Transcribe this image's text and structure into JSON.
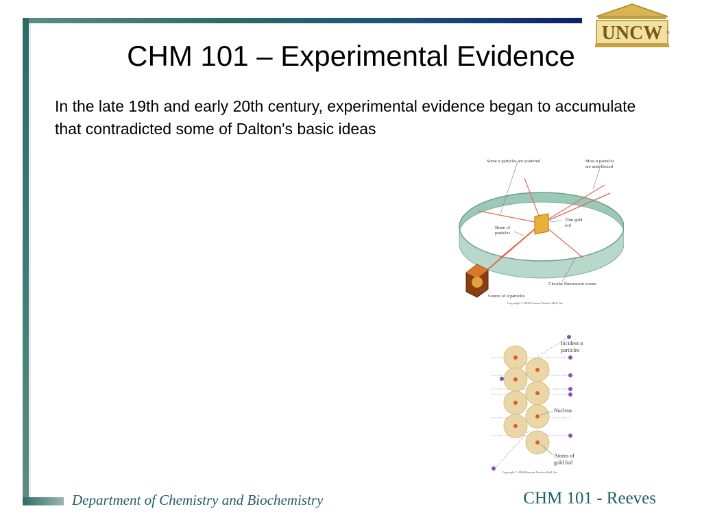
{
  "slide": {
    "title": "CHM 101 – Experimental Evidence",
    "body": "In the late 19th and early 20th century, experimental evidence began to accumulate that contradicted some of Dalton's basic ideas"
  },
  "logo": {
    "text": "UNCW",
    "mark": "®"
  },
  "figure_gold_foil_apparatus": {
    "label_scattered": "Some α particles are scattered",
    "label_undeflected_1": "Most α particles",
    "label_undeflected_2": "are undeflected",
    "label_foil_1": "Thin gold",
    "label_foil_2": "foil",
    "label_beam_1": "Beam of",
    "label_beam_2": "particles",
    "label_screen": "Circular fluorescent screen",
    "label_source": "Source of α particles",
    "copyright": "Copyright © 2006 Pearson Prentice Hall, Inc."
  },
  "figure_atoms": {
    "label_incident_1": "Incident α",
    "label_incident_2": "particles",
    "label_nucleus": "Nucleus",
    "label_atoms_1": "Atoms of",
    "label_atoms_2": "gold foil",
    "copyright": "Copyright © 2006 Pearson Prentice Hall, Inc."
  },
  "footer": {
    "department": "Department of Chemistry and Biochemistry",
    "course": "CHM 101 - Reeves"
  },
  "colors": {
    "frame": "#2f6b66",
    "frame_dark": "#0d1f6b",
    "footer_text": "#1d5f63",
    "logo_gold": "#c9a23a",
    "screen_green": "#b9d8cc",
    "ray_red": "#e06a58"
  }
}
